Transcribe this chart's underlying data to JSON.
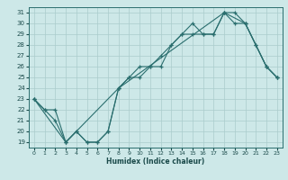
{
  "xlabel": "Humidex (Indice chaleur)",
  "bg_color": "#cde8e8",
  "grid_color": "#aacccc",
  "line_color": "#2a6e6e",
  "xlim": [
    -0.5,
    23.5
  ],
  "ylim": [
    18.5,
    31.5
  ],
  "xticks": [
    0,
    1,
    2,
    3,
    4,
    5,
    6,
    7,
    8,
    9,
    10,
    11,
    12,
    13,
    14,
    15,
    16,
    17,
    18,
    19,
    20,
    21,
    22,
    23
  ],
  "yticks": [
    19,
    20,
    21,
    22,
    23,
    24,
    25,
    26,
    27,
    28,
    29,
    30,
    31
  ],
  "line1_x": [
    0,
    1,
    2,
    3,
    4,
    5,
    6,
    7,
    8,
    9,
    10,
    11,
    12,
    13,
    14,
    15,
    16,
    17,
    18,
    19,
    20,
    21,
    22,
    23
  ],
  "line1_y": [
    23,
    22,
    22,
    19,
    20,
    19,
    19,
    20,
    24,
    25,
    26,
    26,
    27,
    28,
    29,
    30,
    29,
    29,
    31,
    30,
    30,
    28,
    26,
    25
  ],
  "line2_x": [
    0,
    1,
    2,
    3,
    4,
    5,
    6,
    7,
    8,
    9,
    10,
    11,
    12,
    13,
    14,
    15,
    16,
    17,
    18,
    19,
    20,
    21,
    22,
    23
  ],
  "line2_y": [
    23,
    22,
    21,
    19,
    20,
    19,
    19,
    20,
    24,
    25,
    25,
    26,
    26,
    28,
    29,
    29,
    29,
    29,
    31,
    31,
    30,
    28,
    26,
    25
  ],
  "line3_x": [
    0,
    3,
    8,
    18,
    20,
    22,
    23
  ],
  "line3_y": [
    23,
    19,
    24,
    31,
    30,
    26,
    25
  ]
}
